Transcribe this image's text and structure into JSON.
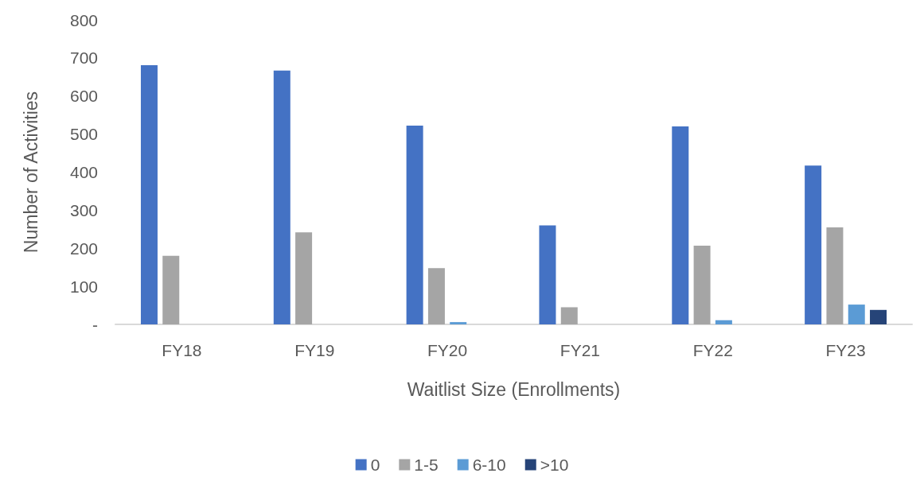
{
  "chart_data": {
    "type": "bar",
    "xlabel": "Waitlist Size (Enrollments)",
    "ylabel": "Number of Activities",
    "categories": [
      "FY18",
      "FY19",
      "FY20",
      "FY21",
      "FY22",
      "FY23"
    ],
    "series": [
      {
        "name": "0",
        "color": "#4472c4",
        "values": [
          681,
          667,
          522,
          260,
          520,
          417
        ]
      },
      {
        "name": "1-5",
        "color": "#a5a5a5",
        "values": [
          180,
          242,
          148,
          45,
          207,
          255
        ]
      },
      {
        "name": "6-10",
        "color": "#5b9bd5",
        "values": [
          0,
          0,
          6,
          0,
          11,
          52
        ]
      },
      {
        "name": ">10",
        "color": "#264478",
        "values": [
          0,
          0,
          0,
          0,
          0,
          38
        ]
      }
    ],
    "ylim": [
      0,
      800
    ],
    "yticks": [
      {
        "value": 0,
        "label": "-"
      },
      100,
      200,
      300,
      400,
      500,
      600,
      700,
      800
    ],
    "grid": false,
    "legend": "bottom"
  }
}
